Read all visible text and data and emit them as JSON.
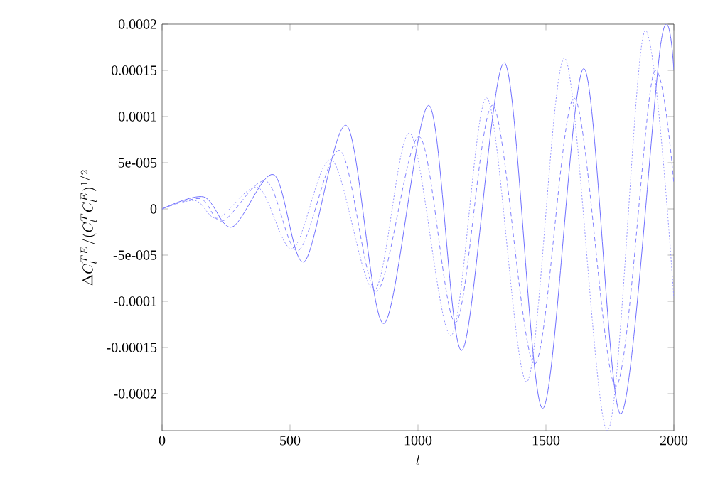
{
  "chart_data": {
    "type": "line",
    "xlabel": "l",
    "ylabel": "\\Delta C_l^{TE}/(C_l^T C_l^E)^{1/2}",
    "xlim": [
      0,
      2000
    ],
    "ylim": [
      -0.00024,
      0.0002
    ],
    "xticks": [
      0,
      500,
      1000,
      1500,
      2000
    ],
    "yticks": [
      {
        "value": -0.0002,
        "label": "-0.0002"
      },
      {
        "value": -0.00015,
        "label": "-0.00015"
      },
      {
        "value": -0.0001,
        "label": "-0.0001"
      },
      {
        "value": -5e-05,
        "label": "-5e-005"
      },
      0,
      {
        "value": 5e-05,
        "label": "5e-005"
      },
      {
        "value": 0.0001,
        "label": "0.0001"
      },
      {
        "value": 0.00015,
        "label": "0.00015"
      },
      {
        "value": 0.0002,
        "label": "0.0002"
      }
    ],
    "marker": "none",
    "grid": false,
    "series": [
      {
        "color": "#6e6eff",
        "line_style": "solid",
        "x": [
          0,
          163,
          274,
          437,
          556,
          722,
          867,
          1043,
          1172,
          1339,
          1487,
          1648,
          1793,
          1950,
          2000
        ],
        "values": [
          0,
          1.3e-05,
          -1.96e-05,
          3.7e-05,
          -5.7e-05,
          9e-05,
          -0.000124,
          0.000112,
          -0.000153,
          0.000158,
          -0.000216,
          0.000152,
          -0.000222,
          0.000181,
          0.00015
        ]
      },
      {
        "color": "#8282ff",
        "line_style": "dashed",
        "x": [
          0,
          150,
          237,
          407,
          533,
          696,
          839,
          1006,
          1148,
          1293,
          1456,
          1611,
          1774,
          1919,
          2000
        ],
        "values": [
          0,
          1.1e-05,
          -1.3e-05,
          3e-05,
          -4.5e-05,
          6.3e-05,
          -8.9e-05,
          7.8e-05,
          -0.000123,
          0.000112,
          -0.000168,
          0.00012,
          -0.000192,
          0.000145,
          2.7e-05
        ]
      },
      {
        "color": "#9696ff",
        "line_style": "dotted",
        "x": [
          0,
          130,
          218,
          376,
          511,
          663,
          830,
          969,
          1130,
          1270,
          1426,
          1574,
          1741,
          1885,
          2000
        ],
        "values": [
          0,
          9e-06,
          -1e-05,
          2.3e-05,
          -4.3e-05,
          5.3e-05,
          -8.8e-05,
          8.2e-05,
          -0.000137,
          0.00012,
          -0.000187,
          0.000163,
          -0.00024,
          0.000192,
          -9.7e-05
        ]
      }
    ]
  }
}
